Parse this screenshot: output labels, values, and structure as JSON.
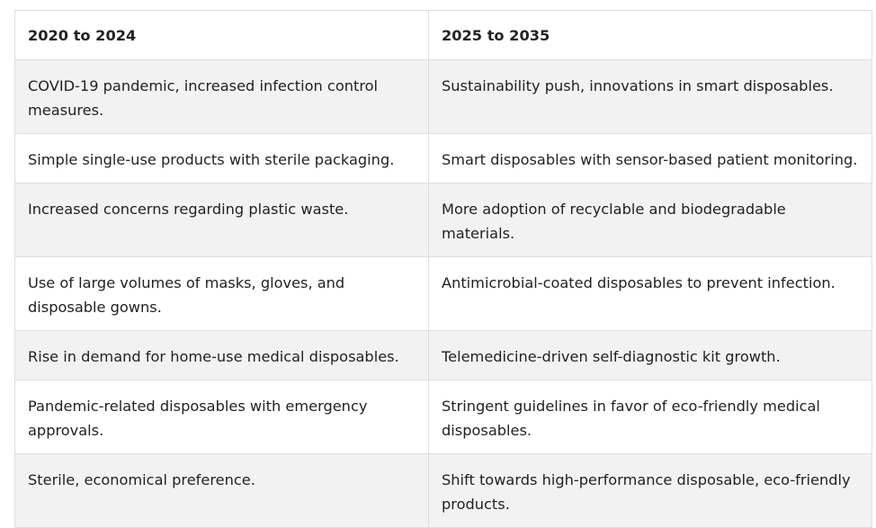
{
  "table": {
    "headers": [
      "2020 to 2024",
      "2025 to 2035"
    ],
    "rows": [
      [
        "COVID-19 pandemic, increased infection control measures.",
        "Sustainability push, innovations in smart disposables."
      ],
      [
        "Simple single-use products with sterile packaging.",
        "Smart disposables with sensor-based patient monitoring."
      ],
      [
        "Increased concerns regarding plastic waste.",
        "More adoption of recyclable and biodegradable materials."
      ],
      [
        "Use of large volumes of masks, gloves, and disposable gowns.",
        "Antimicrobial-coated disposables to prevent infection."
      ],
      [
        "Rise in demand for home-use medical disposables.",
        "Telemedicine-driven self-diagnostic kit growth."
      ],
      [
        "Pandemic-related disposables with emergency approvals.",
        "Stringent guidelines in favor of eco-friendly medical disposables."
      ],
      [
        "Sterile, economical preference.",
        "Shift towards high-performance disposable, eco-friendly products."
      ]
    ]
  }
}
